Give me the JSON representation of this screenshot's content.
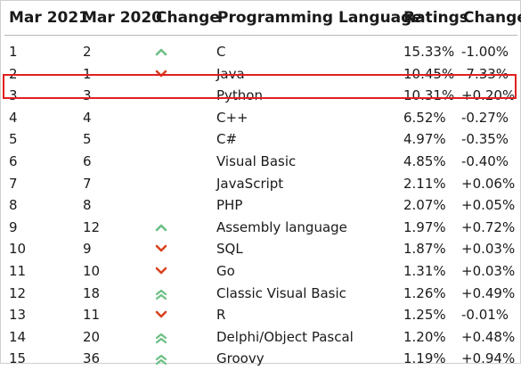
{
  "headers": {
    "mar2021": "Mar 2021",
    "mar2020": "Mar 2020",
    "change": "Change",
    "language": "Programming Language",
    "ratings": "Ratings",
    "change2": "Change"
  },
  "colors": {
    "up": "#6cbf84",
    "down": "#d9421e",
    "highlight": "#e02020"
  },
  "rows": [
    {
      "rank2021": "1",
      "rank2020": "2",
      "trend": "up",
      "language": "C",
      "rating": "15.33%",
      "change": "-1.00%"
    },
    {
      "rank2021": "2",
      "rank2020": "1",
      "trend": "down",
      "language": "Java",
      "rating": "10.45%",
      "change": "-7.33%"
    },
    {
      "rank2021": "3",
      "rank2020": "3",
      "trend": "",
      "language": "Python",
      "rating": "10.31%",
      "change": "+0.20%"
    },
    {
      "rank2021": "4",
      "rank2020": "4",
      "trend": "",
      "language": "C++",
      "rating": "6.52%",
      "change": "-0.27%"
    },
    {
      "rank2021": "5",
      "rank2020": "5",
      "trend": "",
      "language": "C#",
      "rating": "4.97%",
      "change": "-0.35%"
    },
    {
      "rank2021": "6",
      "rank2020": "6",
      "trend": "",
      "language": "Visual Basic",
      "rating": "4.85%",
      "change": "-0.40%"
    },
    {
      "rank2021": "7",
      "rank2020": "7",
      "trend": "",
      "language": "JavaScript",
      "rating": "2.11%",
      "change": "+0.06%"
    },
    {
      "rank2021": "8",
      "rank2020": "8",
      "trend": "",
      "language": "PHP",
      "rating": "2.07%",
      "change": "+0.05%"
    },
    {
      "rank2021": "9",
      "rank2020": "12",
      "trend": "up",
      "language": "Assembly language",
      "rating": "1.97%",
      "change": "+0.72%"
    },
    {
      "rank2021": "10",
      "rank2020": "9",
      "trend": "down",
      "language": "SQL",
      "rating": "1.87%",
      "change": "+0.03%"
    },
    {
      "rank2021": "11",
      "rank2020": "10",
      "trend": "down",
      "language": "Go",
      "rating": "1.31%",
      "change": "+0.03%"
    },
    {
      "rank2021": "12",
      "rank2020": "18",
      "trend": "double-up",
      "language": "Classic Visual Basic",
      "rating": "1.26%",
      "change": "+0.49%"
    },
    {
      "rank2021": "13",
      "rank2020": "11",
      "trend": "down",
      "language": "R",
      "rating": "1.25%",
      "change": "-0.01%"
    },
    {
      "rank2021": "14",
      "rank2020": "20",
      "trend": "double-up",
      "language": "Delphi/Object Pascal",
      "rating": "1.20%",
      "change": "+0.48%"
    },
    {
      "rank2021": "15",
      "rank2020": "36",
      "trend": "double-up",
      "language": "Groovy",
      "rating": "1.19%",
      "change": "+0.94%"
    }
  ]
}
